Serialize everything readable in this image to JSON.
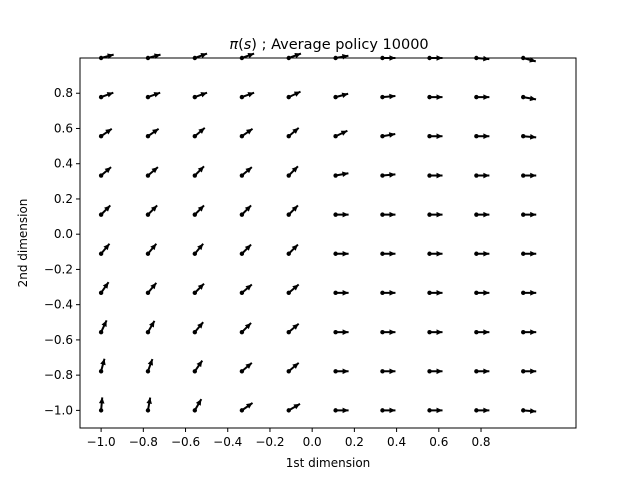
{
  "chart_data": {
    "type": "quiver",
    "title": "π(s) ; Average policy 10000",
    "title_symbol": "π",
    "title_var": "s",
    "title_rest": " ; Average policy 10000",
    "xlabel": "1st dimension",
    "ylabel": "2nd dimension",
    "xlim": [
      -1.1,
      1.25
    ],
    "ylim": [
      -1.1,
      1.0
    ],
    "xticks": [
      -1.0,
      -0.8,
      -0.6,
      -0.4,
      -0.2,
      0.0,
      0.2,
      0.4,
      0.6,
      0.8
    ],
    "xtick_labels": [
      "−1.0",
      "−0.8",
      "−0.6",
      "−0.4",
      "−0.2",
      "0.0",
      "0.2",
      "0.4",
      "0.6",
      "0.8"
    ],
    "yticks": [
      -1.0,
      -0.8,
      -0.6,
      -0.4,
      -0.2,
      0.0,
      0.2,
      0.4,
      0.6,
      0.8
    ],
    "ytick_labels": [
      "−1.0",
      "−0.8",
      "−0.6",
      "−0.4",
      "−0.2",
      "0.0",
      "0.2",
      "0.4",
      "0.6",
      "0.8"
    ],
    "grid": false,
    "x": [
      -1.0,
      -0.778,
      -0.556,
      -0.333,
      -0.111,
      0.111,
      0.333,
      0.556,
      0.778,
      1.0
    ],
    "y": [
      -1.0,
      -0.778,
      -0.556,
      -0.333,
      -0.111,
      0.111,
      0.333,
      0.556,
      0.778,
      1.0
    ],
    "arrow_angles_deg": [
      [
        85,
        80,
        60,
        35,
        30,
        0,
        0,
        0,
        0,
        -5
      ],
      [
        75,
        70,
        55,
        40,
        40,
        0,
        0,
        0,
        0,
        0
      ],
      [
        65,
        60,
        50,
        45,
        40,
        0,
        0,
        0,
        0,
        0
      ],
      [
        55,
        50,
        45,
        40,
        40,
        0,
        0,
        0,
        0,
        0
      ],
      [
        50,
        50,
        50,
        45,
        45,
        0,
        0,
        0,
        0,
        0
      ],
      [
        45,
        45,
        45,
        45,
        45,
        0,
        0,
        0,
        0,
        0
      ],
      [
        40,
        40,
        45,
        40,
        45,
        10,
        5,
        0,
        0,
        0
      ],
      [
        35,
        35,
        40,
        35,
        40,
        25,
        10,
        0,
        0,
        -5
      ],
      [
        20,
        20,
        20,
        20,
        25,
        15,
        5,
        0,
        0,
        -10
      ],
      [
        15,
        15,
        20,
        20,
        20,
        10,
        0,
        0,
        -5,
        -15
      ]
    ],
    "color": "#000000"
  }
}
